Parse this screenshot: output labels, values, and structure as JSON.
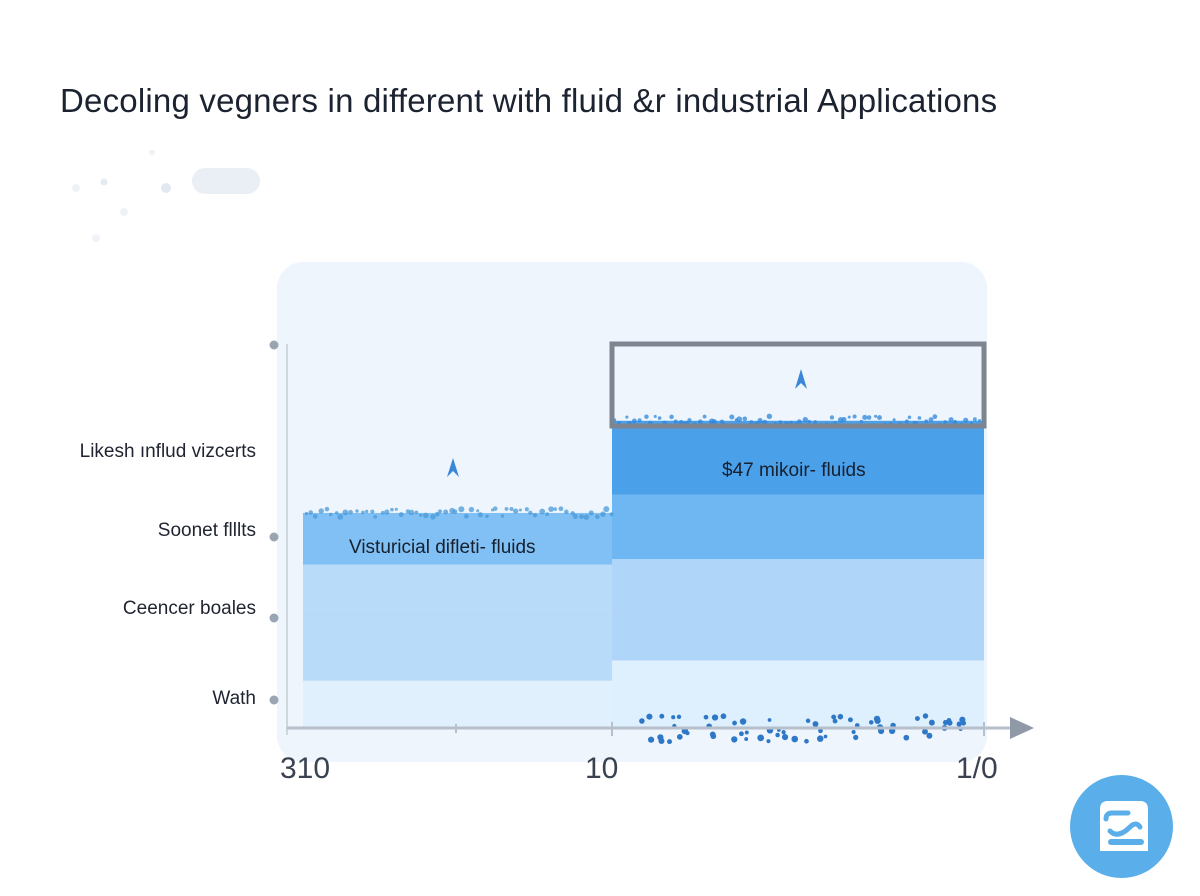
{
  "title": "Decoling vegners in different  with fluid &r industrial Applications",
  "chart_data": {
    "type": "bar",
    "title": "Decoling vegners in different  with fluid &r industrial Applications",
    "xlabel": "",
    "ylabel": "",
    "x_ticks": [
      "310",
      "10",
      "1/0"
    ],
    "y_categories": [
      "Likesh ınflud vizcerts",
      "Soonet flllts",
      "Ceencer boales",
      "Wath"
    ],
    "series": [
      {
        "label": "Visturicial difleti- fluids",
        "value": 2.8
      },
      {
        "label": "$47 mikoir- fluids",
        "value": 4.0
      }
    ],
    "ylim": [
      0,
      5
    ],
    "colors": {
      "band1": "#dceefd",
      "band2": "#a9d3f8",
      "band3": "#63b1f1",
      "band4": "#3d98e8",
      "axis": "#8f99a8"
    },
    "grid": false,
    "legend": "none"
  }
}
